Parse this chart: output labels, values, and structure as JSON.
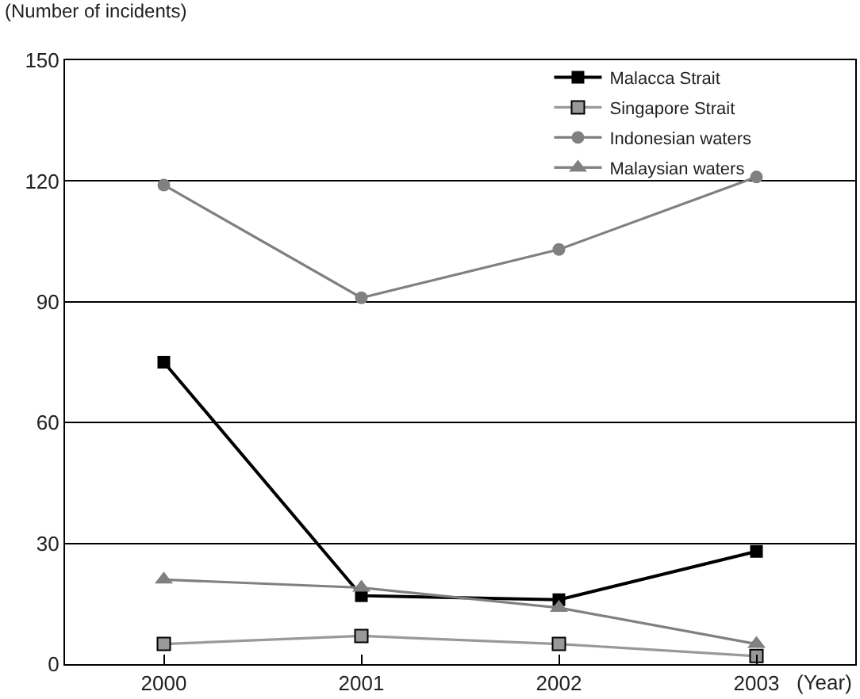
{
  "chart_data": {
    "type": "line",
    "ylabel": "(Number of incidents)",
    "xlabel": "(Year)",
    "categories": [
      "2000",
      "2001",
      "2002",
      "2003"
    ],
    "series": [
      {
        "name": "Malacca Strait",
        "color": "#000000",
        "marker": "square",
        "values": [
          75,
          17,
          16,
          28
        ]
      },
      {
        "name": "Singapore Strait",
        "color": "#999999",
        "marker": "square",
        "values": [
          5,
          7,
          5,
          2
        ]
      },
      {
        "name": "Indonesian waters",
        "color": "#808080",
        "marker": "circle",
        "values": [
          119,
          91,
          103,
          121
        ]
      },
      {
        "name": "Malaysian waters",
        "color": "#808080",
        "marker": "triangle",
        "values": [
          21,
          19,
          14,
          5
        ]
      }
    ],
    "ylim": [
      0,
      150
    ],
    "yticks": [
      0,
      30,
      60,
      90,
      120,
      150
    ],
    "grid": "y",
    "legend": "top right",
    "line_style": "solid"
  }
}
